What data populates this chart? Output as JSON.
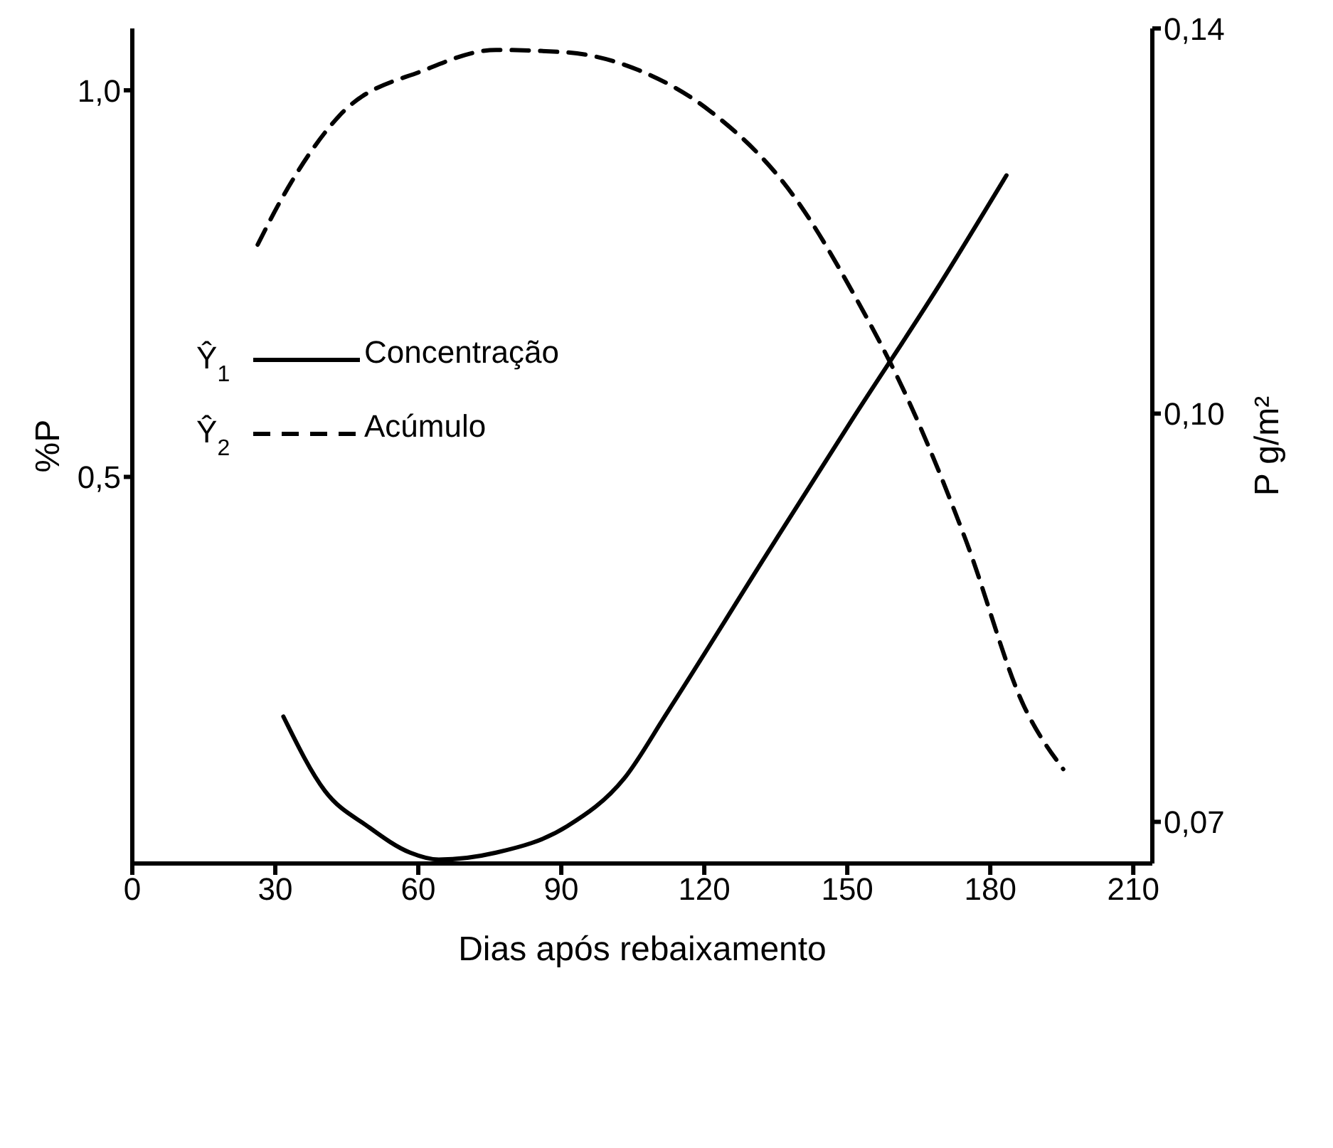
{
  "chart_data": {
    "type": "line",
    "xlabel": "Dias após rebaixamento",
    "ylabel": "%P",
    "y2label": "P g/m²",
    "xlim": [
      0,
      214
    ],
    "xticks": [
      0,
      30,
      60,
      90,
      120,
      150,
      180,
      210
    ],
    "ylim": [
      0,
      1.08
    ],
    "yticks": [
      {
        "value": 1.0,
        "label": "1,0"
      },
      {
        "value": 0.5,
        "label": "0,5"
      }
    ],
    "y2lim": [
      0.0675,
      0.14
    ],
    "y2ticks": [
      {
        "value": 0.14,
        "label": "0,14"
      },
      {
        "value": 0.1,
        "label": "0,10"
      },
      {
        "value": 0.07,
        "label": "0,07"
      }
    ],
    "log": "y2",
    "legend": "top left",
    "grid": false,
    "marker": "none",
    "annotations": [
      "Ŷ$_{1}$",
      "Ŷ$_{2}$"
    ],
    "series": [
      {
        "name": "Concentração",
        "color": "#000000",
        "line_style": "solid",
        "x": [
          31.7,
          40.4,
          49.4,
          58.3,
          64.3,
          76.3,
          91.2,
          103.2,
          112.2,
          133.1,
          151,
          169,
          183.4
        ],
        "values": [
          0.19,
          0.094,
          0.048,
          0.014,
          0.005,
          0.014,
          0.048,
          0.11,
          0.195,
          0.4,
          0.574,
          0.745,
          0.89
        ]
      },
      {
        "name": "Acúmulo",
        "color": "#000000",
        "line_style": "dashed",
        "axis": "y2",
        "x": [
          26.3,
          31.4,
          43.4,
          61.3,
          76.3,
          91.2,
          106.2,
          121.1,
          139.1,
          151,
          163,
          175,
          187,
          195.3
        ],
        "values": [
          0.1159,
          0.1207,
          0.1297,
          0.135,
          0.1374,
          0.1371,
          0.135,
          0.1303,
          0.1207,
          0.1113,
          0.101,
          0.0894,
          0.0775,
          0.0733
        ]
      }
    ]
  }
}
